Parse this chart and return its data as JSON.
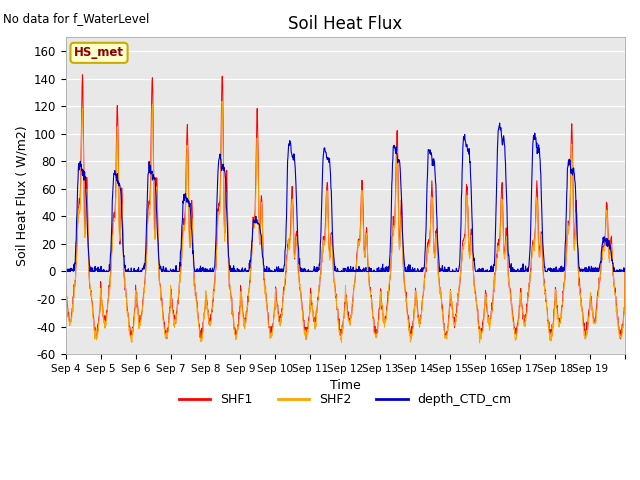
{
  "title": "Soil Heat Flux",
  "ylabel": "Soil Heat Flux ( W/m2)",
  "xlabel": "Time",
  "ylim": [
    -60,
    170
  ],
  "yticks": [
    -60,
    -40,
    -20,
    0,
    20,
    40,
    60,
    80,
    100,
    120,
    140,
    160
  ],
  "no_data_text": "No data for f_WaterLevel",
  "hs_met_label": "HS_met",
  "legend_labels": [
    "SHF1",
    "SHF2",
    "depth_CTD_cm"
  ],
  "colors": {
    "SHF1": "#ff0000",
    "SHF2": "#ffa500",
    "depth_CTD_cm": "#0000cc",
    "background": "#e8e8e8",
    "hs_met_bg": "#ffffcc",
    "hs_met_border": "#ccaa00"
  },
  "xtick_labels": [
    "Sep 4",
    "Sep 5",
    "Sep 6",
    "Sep 7",
    "Sep 8",
    "Sep 9",
    "Sep 10",
    "Sep 11",
    "Sep 12",
    "Sep 13",
    "Sep 14",
    "Sep 15",
    "Sep 16",
    "Sep 17",
    "Sep 18",
    "Sep 19"
  ],
  "n_days": 16,
  "points_per_day": 96
}
